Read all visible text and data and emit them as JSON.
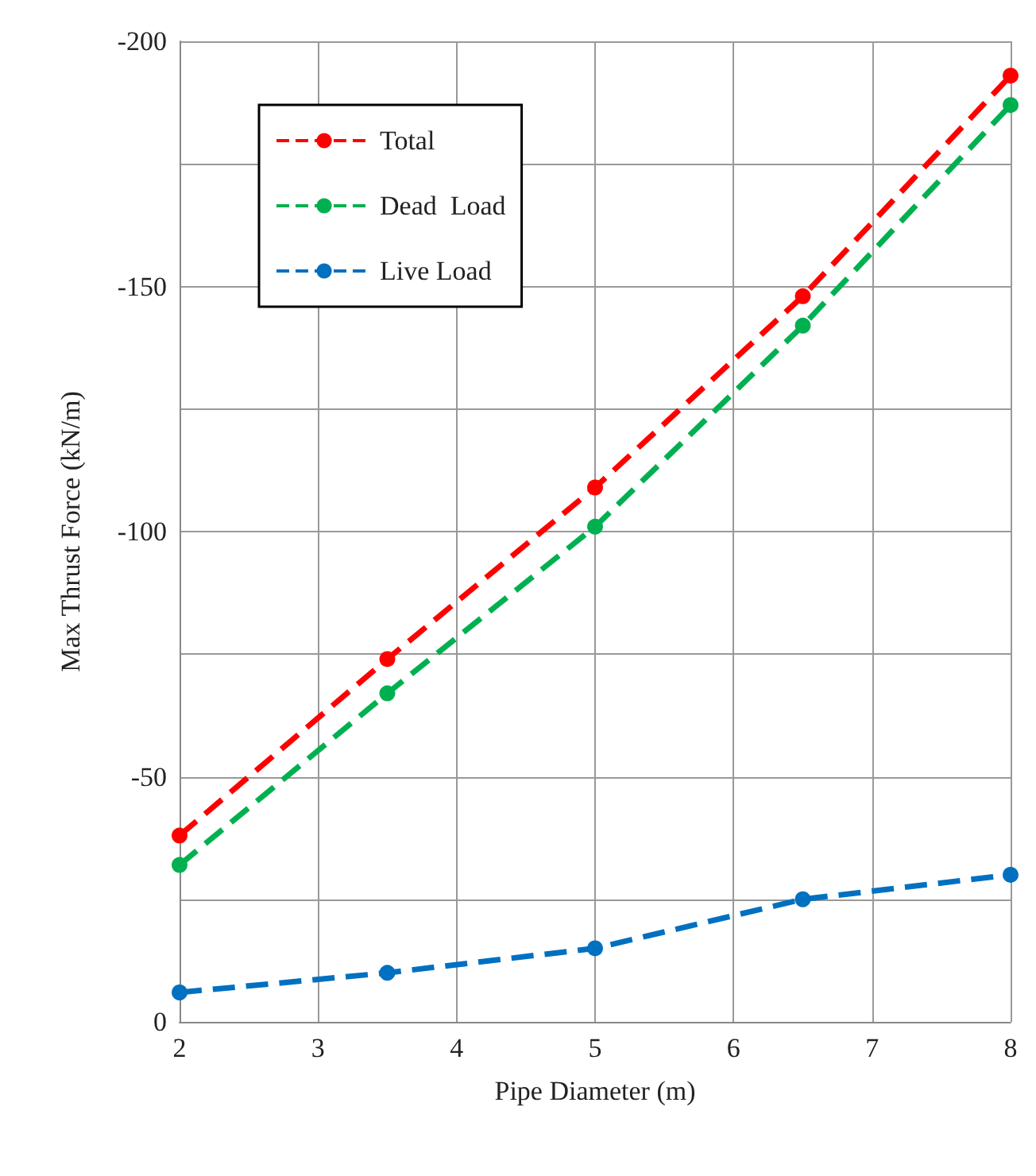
{
  "chart_data": {
    "type": "line",
    "xlabel": "Pipe Diameter (m)",
    "ylabel": "Max Thrust Force (kN/m)",
    "x": [
      2,
      3.5,
      5,
      6.5,
      8
    ],
    "series": [
      {
        "name": "Total",
        "color": "#ff0000",
        "values": [
          -38,
          -74,
          -109,
          -148,
          -193
        ]
      },
      {
        "name": "Dead  Load",
        "color": "#00b050",
        "values": [
          -32,
          -67,
          -101,
          -142,
          -187
        ]
      },
      {
        "name": "Live Load",
        "color": "#0070c0",
        "values": [
          -6,
          -10,
          -15,
          -25,
          -30
        ]
      }
    ],
    "xlim": [
      2,
      8
    ],
    "xticks": [
      2,
      3,
      4,
      5,
      6,
      7,
      8
    ],
    "ylim": [
      0,
      -200
    ],
    "yticks": [
      0,
      {
        "value": -25,
        "label": null
      },
      -50,
      {
        "value": -75,
        "label": null
      },
      -100,
      {
        "value": -125,
        "label": null
      },
      -150,
      {
        "value": -175,
        "label": null
      },
      -200
    ],
    "grid": true,
    "legend": "top left",
    "marker": "circle",
    "line_style": "dashed"
  }
}
